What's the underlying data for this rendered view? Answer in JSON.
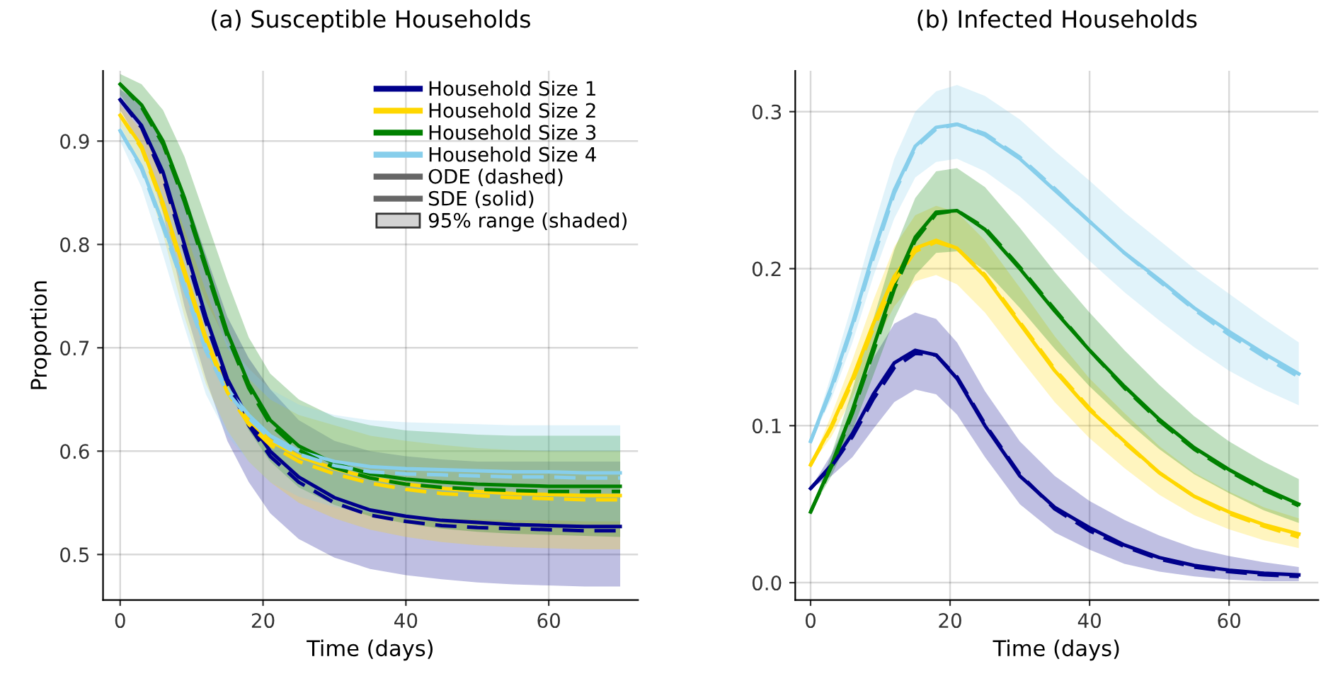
{
  "chart_data": [
    {
      "type": "line",
      "title": "(a) Susceptible Households",
      "xlabel": "Time (days)",
      "ylabel": "Proportion",
      "x": [
        0,
        3,
        6,
        9,
        12,
        15,
        18,
        21,
        25,
        30,
        35,
        40,
        45,
        50,
        55,
        60,
        65,
        70
      ],
      "xlim": [
        -2.4,
        72.5
      ],
      "xticks": [
        0,
        20,
        40,
        60
      ],
      "ylim": [
        0.456,
        0.968
      ],
      "yticks": [
        0.5,
        0.6,
        0.7,
        0.8,
        0.9
      ],
      "grid": true,
      "legend": "top right",
      "line_style": "solid",
      "series": [
        {
          "name": "Household Size 1",
          "color": "#00008b",
          "values": [
            0.94,
            0.915,
            0.87,
            0.8,
            0.73,
            0.67,
            0.63,
            0.6,
            0.575,
            0.555,
            0.543,
            0.537,
            0.533,
            0.531,
            0.529,
            0.528,
            0.527,
            0.527
          ],
          "lower": [
            0.93,
            0.895,
            0.83,
            0.74,
            0.67,
            0.61,
            0.57,
            0.54,
            0.515,
            0.497,
            0.486,
            0.48,
            0.476,
            0.473,
            0.471,
            0.47,
            0.469,
            0.469
          ],
          "upper": [
            0.95,
            0.935,
            0.9,
            0.85,
            0.79,
            0.73,
            0.69,
            0.66,
            0.63,
            0.61,
            0.6,
            0.595,
            0.592,
            0.59,
            0.59,
            0.59,
            0.59,
            0.59
          ]
        },
        {
          "name": "Household Size 2",
          "color": "#ffd700",
          "values": [
            0.925,
            0.895,
            0.84,
            0.775,
            0.71,
            0.66,
            0.63,
            0.61,
            0.595,
            0.583,
            0.574,
            0.568,
            0.564,
            0.561,
            0.559,
            0.558,
            0.557,
            0.557
          ],
          "lower": [
            0.915,
            0.875,
            0.81,
            0.73,
            0.665,
            0.62,
            0.59,
            0.57,
            0.55,
            0.535,
            0.524,
            0.517,
            0.512,
            0.509,
            0.507,
            0.506,
            0.505,
            0.505
          ],
          "upper": [
            0.935,
            0.91,
            0.87,
            0.815,
            0.755,
            0.7,
            0.67,
            0.65,
            0.635,
            0.625,
            0.615,
            0.61,
            0.606,
            0.603,
            0.601,
            0.6,
            0.6,
            0.6
          ]
        },
        {
          "name": "Household Size 3",
          "color": "#008000",
          "values": [
            0.955,
            0.935,
            0.9,
            0.845,
            0.78,
            0.715,
            0.665,
            0.63,
            0.605,
            0.588,
            0.578,
            0.573,
            0.57,
            0.568,
            0.567,
            0.566,
            0.566,
            0.566
          ],
          "lower": [
            0.945,
            0.915,
            0.87,
            0.8,
            0.73,
            0.665,
            0.62,
            0.59,
            0.565,
            0.548,
            0.537,
            0.53,
            0.525,
            0.522,
            0.52,
            0.519,
            0.518,
            0.517
          ],
          "upper": [
            0.965,
            0.955,
            0.93,
            0.885,
            0.825,
            0.765,
            0.71,
            0.675,
            0.65,
            0.633,
            0.625,
            0.62,
            0.618,
            0.616,
            0.615,
            0.615,
            0.615,
            0.615
          ]
        },
        {
          "name": "Household Size 4",
          "color": "#87ceeb",
          "values": [
            0.91,
            0.875,
            0.82,
            0.76,
            0.7,
            0.66,
            0.635,
            0.615,
            0.6,
            0.59,
            0.585,
            0.583,
            0.582,
            0.581,
            0.58,
            0.58,
            0.579,
            0.579
          ],
          "lower": [
            0.9,
            0.855,
            0.79,
            0.72,
            0.655,
            0.615,
            0.59,
            0.57,
            0.556,
            0.546,
            0.54,
            0.537,
            0.535,
            0.534,
            0.533,
            0.533,
            0.532,
            0.532
          ],
          "upper": [
            0.92,
            0.895,
            0.85,
            0.8,
            0.745,
            0.705,
            0.68,
            0.66,
            0.645,
            0.635,
            0.63,
            0.628,
            0.627,
            0.626,
            0.625,
            0.625,
            0.625,
            0.625
          ]
        },
        {
          "color": "#00008b",
          "line_style": "dashed",
          "values": [
            0.94,
            0.913,
            0.865,
            0.795,
            0.725,
            0.665,
            0.625,
            0.595,
            0.57,
            0.55,
            0.538,
            0.532,
            0.528,
            0.526,
            0.525,
            0.524,
            0.523,
            0.523
          ]
        },
        {
          "color": "#ffd700",
          "line_style": "dashed",
          "values": [
            0.925,
            0.893,
            0.837,
            0.772,
            0.707,
            0.657,
            0.626,
            0.606,
            0.59,
            0.578,
            0.569,
            0.563,
            0.559,
            0.557,
            0.555,
            0.554,
            0.553,
            0.553
          ]
        },
        {
          "color": "#008000",
          "line_style": "dashed",
          "values": [
            0.955,
            0.933,
            0.897,
            0.841,
            0.776,
            0.711,
            0.661,
            0.626,
            0.601,
            0.584,
            0.574,
            0.568,
            0.565,
            0.563,
            0.562,
            0.561,
            0.561,
            0.561
          ]
        },
        {
          "color": "#87ceeb",
          "line_style": "dashed",
          "values": [
            0.91,
            0.873,
            0.817,
            0.757,
            0.697,
            0.657,
            0.632,
            0.612,
            0.597,
            0.586,
            0.58,
            0.578,
            0.577,
            0.576,
            0.575,
            0.575,
            0.574,
            0.574
          ]
        },
        {
          "name": "ODE (dashed)",
          "color": "#666666",
          "values": [
            null,
            null,
            null,
            null,
            null,
            null,
            null,
            null,
            null,
            null,
            null,
            null,
            null,
            null,
            null,
            null,
            null,
            null
          ]
        },
        {
          "name": "SDE (solid)",
          "color": "#666666",
          "values": [
            null,
            null,
            null,
            null,
            null,
            null,
            null,
            null,
            null,
            null,
            null,
            null,
            null,
            null,
            null,
            null,
            null,
            null
          ]
        },
        {
          "name": "95% range (shaded)",
          "type": "area",
          "color": "#d3d3d3",
          "values": [
            null,
            null,
            null,
            null,
            null,
            null,
            null,
            null,
            null,
            null,
            null,
            null,
            null,
            null,
            null,
            null,
            null,
            null
          ]
        }
      ]
    },
    {
      "type": "line",
      "title": "(b) Infected Households",
      "xlabel": "Time (days)",
      "x": [
        0,
        3,
        6,
        9,
        12,
        15,
        18,
        21,
        25,
        30,
        35,
        40,
        45,
        50,
        55,
        60,
        65,
        70
      ],
      "xlim": [
        -2.2,
        72.8
      ],
      "xticks": [
        0,
        20,
        40,
        60
      ],
      "ylim": [
        -0.011,
        0.326
      ],
      "yticks": [
        {
          "value": 0,
          "label": "0.0"
        },
        0.1,
        0.2,
        0.3
      ],
      "grid": true,
      "line_style": "solid",
      "series": [
        {
          "color": "#00008b",
          "values": [
            0.06,
            0.075,
            0.095,
            0.12,
            0.14,
            0.148,
            0.145,
            0.13,
            0.1,
            0.068,
            0.048,
            0.035,
            0.024,
            0.016,
            0.011,
            0.008,
            0.006,
            0.005
          ],
          "lower": [
            0.06,
            0.068,
            0.08,
            0.098,
            0.115,
            0.123,
            0.12,
            0.107,
            0.08,
            0.05,
            0.032,
            0.021,
            0.012,
            0.007,
            0.004,
            0.002,
            0.001,
            0.001
          ],
          "upper": [
            0.06,
            0.082,
            0.11,
            0.143,
            0.165,
            0.172,
            0.168,
            0.153,
            0.122,
            0.09,
            0.068,
            0.052,
            0.04,
            0.03,
            0.022,
            0.017,
            0.013,
            0.01
          ]
        },
        {
          "color": "#ffd700",
          "values": [
            0.075,
            0.1,
            0.13,
            0.165,
            0.195,
            0.213,
            0.218,
            0.213,
            0.195,
            0.165,
            0.135,
            0.11,
            0.09,
            0.07,
            0.055,
            0.045,
            0.037,
            0.031
          ],
          "lower": [
            0.075,
            0.093,
            0.118,
            0.15,
            0.176,
            0.192,
            0.196,
            0.19,
            0.172,
            0.143,
            0.115,
            0.092,
            0.073,
            0.056,
            0.043,
            0.034,
            0.027,
            0.022
          ],
          "upper": [
            0.075,
            0.107,
            0.142,
            0.18,
            0.214,
            0.234,
            0.24,
            0.236,
            0.218,
            0.188,
            0.157,
            0.13,
            0.108,
            0.087,
            0.07,
            0.058,
            0.048,
            0.041
          ]
        },
        {
          "color": "#008000",
          "values": [
            0.045,
            0.075,
            0.11,
            0.15,
            0.19,
            0.22,
            0.236,
            0.237,
            0.225,
            0.2,
            0.173,
            0.148,
            0.125,
            0.104,
            0.086,
            0.072,
            0.06,
            0.05
          ],
          "lower": [
            0.045,
            0.068,
            0.097,
            0.132,
            0.168,
            0.196,
            0.21,
            0.211,
            0.199,
            0.175,
            0.149,
            0.125,
            0.104,
            0.085,
            0.069,
            0.057,
            0.046,
            0.038
          ],
          "upper": [
            0.045,
            0.082,
            0.123,
            0.168,
            0.212,
            0.245,
            0.262,
            0.264,
            0.252,
            0.226,
            0.198,
            0.172,
            0.148,
            0.126,
            0.106,
            0.09,
            0.077,
            0.066
          ]
        },
        {
          "color": "#87ceeb",
          "values": [
            0.09,
            0.125,
            0.165,
            0.21,
            0.25,
            0.278,
            0.29,
            0.292,
            0.285,
            0.27,
            0.25,
            0.23,
            0.21,
            0.193,
            0.175,
            0.16,
            0.146,
            0.133
          ],
          "lower": [
            0.09,
            0.117,
            0.153,
            0.195,
            0.232,
            0.258,
            0.268,
            0.27,
            0.262,
            0.246,
            0.226,
            0.205,
            0.185,
            0.167,
            0.15,
            0.135,
            0.123,
            0.113
          ],
          "upper": [
            0.09,
            0.133,
            0.178,
            0.226,
            0.27,
            0.3,
            0.313,
            0.317,
            0.31,
            0.295,
            0.275,
            0.256,
            0.236,
            0.218,
            0.2,
            0.184,
            0.168,
            0.153
          ]
        },
        {
          "color": "#00008b",
          "line_style": "dashed",
          "values": [
            0.06,
            0.074,
            0.093,
            0.117,
            0.137,
            0.146,
            0.145,
            0.131,
            0.101,
            0.069,
            0.047,
            0.033,
            0.023,
            0.015,
            0.01,
            0.007,
            0.005,
            0.004
          ]
        },
        {
          "color": "#ffd700",
          "line_style": "dashed",
          "values": [
            0.075,
            0.099,
            0.128,
            0.162,
            0.192,
            0.211,
            0.217,
            0.213,
            0.196,
            0.166,
            0.136,
            0.111,
            0.089,
            0.07,
            0.055,
            0.044,
            0.036,
            0.029
          ]
        },
        {
          "color": "#008000",
          "line_style": "dashed",
          "values": [
            0.045,
            0.074,
            0.108,
            0.147,
            0.187,
            0.218,
            0.235,
            0.237,
            0.226,
            0.201,
            0.174,
            0.148,
            0.124,
            0.103,
            0.085,
            0.071,
            0.059,
            0.049
          ]
        },
        {
          "color": "#87ceeb",
          "line_style": "dashed",
          "values": [
            0.09,
            0.123,
            0.163,
            0.207,
            0.248,
            0.277,
            0.289,
            0.292,
            0.286,
            0.271,
            0.251,
            0.23,
            0.21,
            0.192,
            0.174,
            0.158,
            0.144,
            0.131
          ]
        }
      ]
    }
  ]
}
